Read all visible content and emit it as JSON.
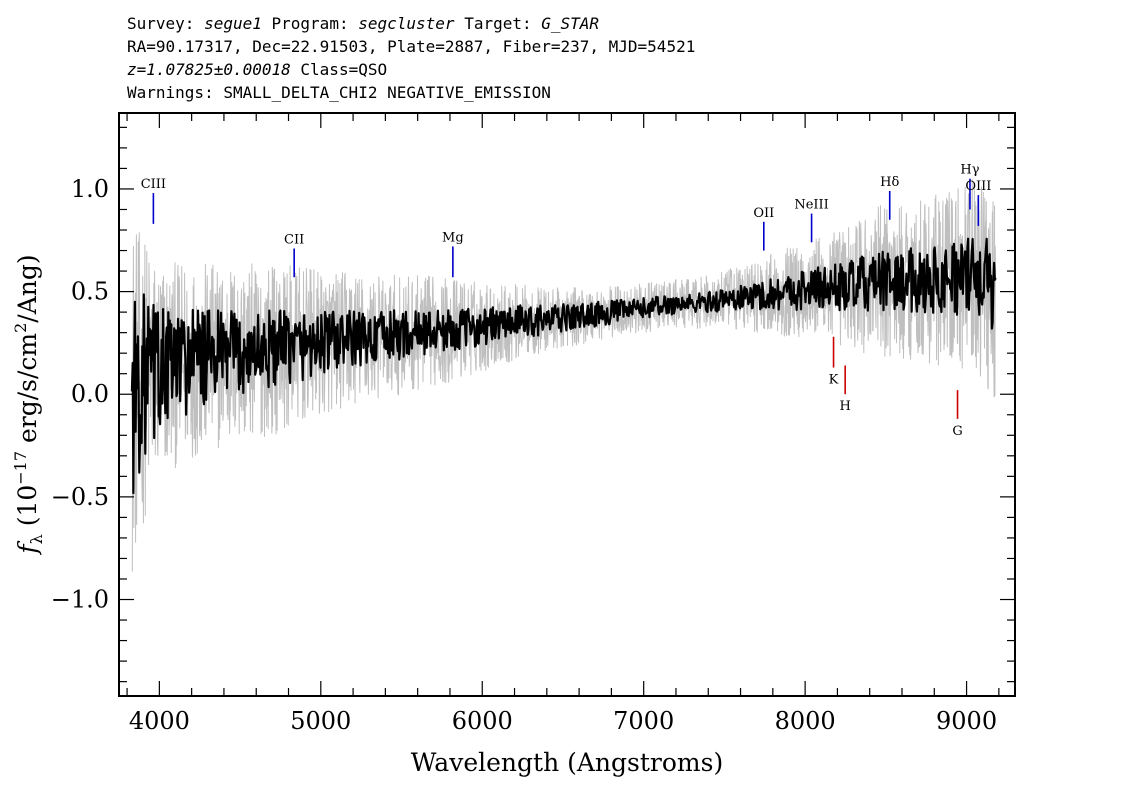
{
  "header": {
    "survey_label": "Survey:",
    "survey": "segue1",
    "program_label": "Program:",
    "program": "segcluster",
    "target_label": "Target:",
    "target": "G_STAR",
    "line2": "RA=90.17317, Dec=22.91503, Plate=2887, Fiber=237, MJD=54521",
    "redshift": "z=1.07825±0.00018",
    "class": "Class=QSO",
    "warnings": "Warnings: SMALL_DELTA_CHI2 NEGATIVE_EMISSION"
  },
  "chart_data": {
    "type": "line",
    "xlabel": "Wavelength (Angstroms)",
    "ylabel": "f_λ (10^-17 erg/s/cm²/Ang)",
    "xlim": [
      3750,
      9300
    ],
    "ylim": [
      -1.47,
      1.37
    ],
    "xticks": [
      4000,
      5000,
      6000,
      7000,
      8000,
      9000
    ],
    "yticks": [
      -1.0,
      -0.5,
      0.0,
      0.5,
      1.0
    ],
    "grid": false,
    "series": [
      {
        "role": "raw_flux",
        "color": "#bfbfbf",
        "x": [
          3830,
          3870,
          3910,
          3950,
          3990,
          4100,
          4200,
          4300,
          4400,
          4500,
          4600,
          4700,
          4800,
          4900,
          5000,
          5100,
          5200,
          5300,
          5400,
          5500,
          5600,
          5700,
          5800,
          5900,
          6000,
          6100,
          6200,
          6300,
          6400,
          6500,
          6600,
          6700,
          6800,
          6900,
          7000,
          7100,
          7200,
          7300,
          7400,
          7500,
          7600,
          7700,
          7800,
          7900,
          8000,
          8100,
          8200,
          8300,
          8400,
          8500,
          8600,
          8700,
          8800,
          8900,
          9000,
          9100,
          9180
        ],
        "y": [
          0.0,
          0.05,
          0.08,
          0.1,
          0.12,
          0.14,
          0.17,
          0.18,
          0.19,
          0.2,
          0.21,
          0.22,
          0.23,
          0.24,
          0.25,
          0.26,
          0.27,
          0.27,
          0.28,
          0.29,
          0.3,
          0.31,
          0.31,
          0.32,
          0.33,
          0.34,
          0.35,
          0.36,
          0.36,
          0.37,
          0.38,
          0.39,
          0.4,
          0.41,
          0.42,
          0.43,
          0.44,
          0.44,
          0.45,
          0.46,
          0.47,
          0.48,
          0.49,
          0.5,
          0.51,
          0.52,
          0.52,
          0.53,
          0.54,
          0.55,
          0.55,
          0.56,
          0.56,
          0.57,
          0.57,
          0.58,
          0.5
        ],
        "noise": [
          0.9,
          0.75,
          0.7,
          0.6,
          0.55,
          0.5,
          0.48,
          0.46,
          0.45,
          0.44,
          0.43,
          0.42,
          0.4,
          0.38,
          0.36,
          0.34,
          0.33,
          0.31,
          0.3,
          0.29,
          0.28,
          0.27,
          0.26,
          0.24,
          0.22,
          0.2,
          0.19,
          0.17,
          0.16,
          0.15,
          0.14,
          0.13,
          0.13,
          0.12,
          0.12,
          0.12,
          0.12,
          0.12,
          0.13,
          0.14,
          0.16,
          0.18,
          0.2,
          0.22,
          0.24,
          0.26,
          0.28,
          0.32,
          0.36,
          0.38,
          0.38,
          0.4,
          0.42,
          0.44,
          0.46,
          0.5,
          0.55
        ]
      },
      {
        "role": "smoothed_flux",
        "color": "#000000",
        "x": [
          3830,
          3870,
          3910,
          3950,
          3990,
          4100,
          4200,
          4300,
          4400,
          4500,
          4600,
          4700,
          4800,
          4900,
          5000,
          5100,
          5200,
          5300,
          5400,
          5500,
          5600,
          5700,
          5800,
          5900,
          6000,
          6100,
          6200,
          6300,
          6400,
          6500,
          6600,
          6700,
          6800,
          6900,
          7000,
          7100,
          7200,
          7300,
          7400,
          7500,
          7600,
          7700,
          7800,
          7900,
          8000,
          8100,
          8200,
          8300,
          8400,
          8500,
          8600,
          8700,
          8800,
          8900,
          9000,
          9100,
          9180
        ],
        "y": [
          0.0,
          0.05,
          0.08,
          0.1,
          0.12,
          0.14,
          0.17,
          0.18,
          0.19,
          0.2,
          0.21,
          0.22,
          0.23,
          0.24,
          0.25,
          0.26,
          0.27,
          0.27,
          0.28,
          0.29,
          0.3,
          0.31,
          0.31,
          0.32,
          0.33,
          0.34,
          0.35,
          0.36,
          0.36,
          0.37,
          0.38,
          0.39,
          0.4,
          0.41,
          0.42,
          0.43,
          0.44,
          0.44,
          0.45,
          0.46,
          0.47,
          0.48,
          0.49,
          0.5,
          0.51,
          0.52,
          0.52,
          0.53,
          0.54,
          0.55,
          0.55,
          0.56,
          0.56,
          0.57,
          0.57,
          0.58,
          0.5
        ],
        "noise": [
          0.55,
          0.45,
          0.42,
          0.36,
          0.32,
          0.28,
          0.26,
          0.24,
          0.22,
          0.21,
          0.2,
          0.19,
          0.18,
          0.17,
          0.16,
          0.15,
          0.14,
          0.13,
          0.13,
          0.12,
          0.11,
          0.11,
          0.1,
          0.1,
          0.09,
          0.09,
          0.08,
          0.08,
          0.07,
          0.07,
          0.06,
          0.06,
          0.06,
          0.05,
          0.05,
          0.05,
          0.05,
          0.05,
          0.05,
          0.06,
          0.06,
          0.07,
          0.08,
          0.09,
          0.1,
          0.11,
          0.12,
          0.13,
          0.14,
          0.15,
          0.15,
          0.16,
          0.17,
          0.18,
          0.19,
          0.2,
          0.22
        ]
      }
    ],
    "emission_lines": [
      {
        "label": "CIII",
        "wavelength": 3963,
        "y_top": 0.98,
        "y_bottom": 0.83,
        "color": "#0000cc"
      },
      {
        "label": "CII",
        "wavelength": 4835,
        "y_top": 0.71,
        "y_bottom": 0.57,
        "color": "#0000cc"
      },
      {
        "label": "Mg",
        "wavelength": 5818,
        "y_top": 0.72,
        "y_bottom": 0.57,
        "color": "#0000cc"
      },
      {
        "label": "OII",
        "wavelength": 7744,
        "y_top": 0.84,
        "y_bottom": 0.7,
        "color": "#0000cc"
      },
      {
        "label": "NeIII",
        "wavelength": 8040,
        "y_top": 0.88,
        "y_bottom": 0.74,
        "color": "#0000cc"
      },
      {
        "label": "Hδ",
        "wavelength": 8524,
        "y_top": 0.99,
        "y_bottom": 0.85,
        "color": "#0000cc"
      },
      {
        "label": "Hγ",
        "wavelength": 9021,
        "y_top": 1.05,
        "y_bottom": 0.9,
        "color": "#0000cc"
      },
      {
        "label": "OIII",
        "wavelength": 9073,
        "y_top": 0.97,
        "y_bottom": 0.82,
        "color": "#0000cc"
      }
    ],
    "absorption_lines": [
      {
        "label": "K",
        "wavelength": 8176,
        "y_top": 0.28,
        "y_bottom": 0.13,
        "color": "#cc0000"
      },
      {
        "label": "H",
        "wavelength": 8248,
        "y_top": 0.14,
        "y_bottom": 0.0,
        "color": "#cc0000"
      },
      {
        "label": "G",
        "wavelength": 8944,
        "y_top": 0.02,
        "y_bottom": -0.12,
        "color": "#cc0000"
      }
    ]
  }
}
